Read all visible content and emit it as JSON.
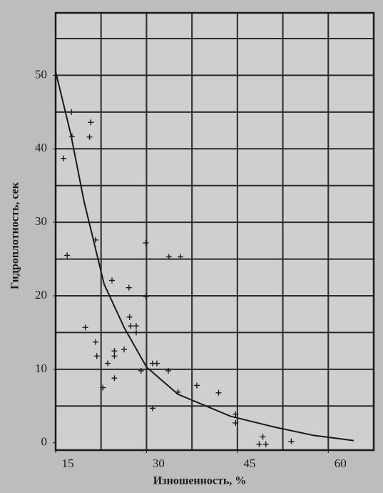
{
  "chart_data": {
    "type": "scatter",
    "x_label": "Изношенность, %",
    "y_label": "Гидроплотность, сек",
    "xlim": [
      15,
      67.5
    ],
    "ylim": [
      -1,
      58.5
    ],
    "xticks": [
      15,
      30,
      45,
      60
    ],
    "yticks": [
      0,
      10,
      20,
      30,
      40,
      50
    ],
    "xgrid": [
      15,
      22.5,
      30,
      37.5,
      45,
      52.5,
      60,
      67.5
    ],
    "ygrid": [
      5,
      10,
      15,
      20,
      25,
      30,
      35,
      40,
      45,
      50,
      55
    ],
    "grid": true,
    "series": [
      {
        "type": "scatter",
        "color": "#1a1a1a",
        "x": [
          16.3,
          16.9,
          17.6,
          17.7,
          20.8,
          20.6,
          21.6,
          19.9,
          21.6,
          21.8,
          22.8,
          23.6,
          24.3,
          24.7,
          24.7,
          24.7,
          26.3,
          27.1,
          27.2,
          27.4,
          28.3,
          28.3,
          29.1,
          29.9,
          29.9,
          31,
          31.7,
          31,
          33.6,
          33.7,
          35.6,
          35.2,
          38.3,
          41.9,
          44.7,
          44.7,
          48.6,
          49.2,
          49.7,
          53.9
        ],
        "values": [
          38.7,
          25.5,
          45,
          41.7,
          43.6,
          41.6,
          27.6,
          15.7,
          13.7,
          11.8,
          7.5,
          10.8,
          22.1,
          12.5,
          11.8,
          8.8,
          12.7,
          21.1,
          17.1,
          15.9,
          15.9,
          15,
          9.8,
          27.2,
          19.9,
          10.8,
          10.8,
          4.7,
          9.8,
          25.3,
          25.3,
          6.9,
          7.8,
          6.8,
          3.9,
          2.7,
          -0.2,
          0.8,
          -0.2,
          0.2
        ]
      },
      {
        "type": "line",
        "color": "#1a1a1a",
        "x": [
          15,
          17.5,
          19.7,
          23,
          26.3,
          30,
          35.2,
          43.9,
          50.8,
          57.6,
          64.2
        ],
        "values": [
          50.5,
          42,
          32.8,
          21.6,
          15.7,
          10.3,
          6.6,
          3.6,
          2.2,
          1,
          0.3
        ]
      }
    ]
  }
}
